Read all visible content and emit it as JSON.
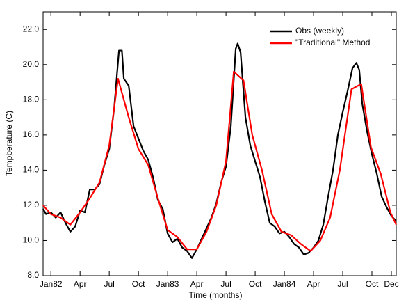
{
  "chart_data": {
    "type": "line",
    "x_label": "Time (months)",
    "y_label": "Tempberature (C)",
    "xlim": [
      -0.8,
      35.5
    ],
    "ylim": [
      8,
      23
    ],
    "xticks": [
      {
        "value": 0,
        "label": "Jan82"
      },
      {
        "value": 3,
        "label": "Apr"
      },
      {
        "value": 6,
        "label": "Jul"
      },
      {
        "value": 9,
        "label": "Oct"
      },
      {
        "value": 12,
        "label": "Jan83"
      },
      {
        "value": 15,
        "label": "Apr"
      },
      {
        "value": 18,
        "label": "Jul"
      },
      {
        "value": 21,
        "label": "Oct"
      },
      {
        "value": 24,
        "label": "Jan84"
      },
      {
        "value": 27,
        "label": "Apr"
      },
      {
        "value": 30,
        "label": "Jul"
      },
      {
        "value": 33,
        "label": "Oct"
      },
      {
        "value": 35,
        "label": "Dec"
      }
    ],
    "yticks": [
      {
        "value": 8,
        "label": "8.0"
      },
      {
        "value": 10,
        "label": "10.0"
      },
      {
        "value": 12,
        "label": "12.0"
      },
      {
        "value": 14,
        "label": "14.0"
      },
      {
        "value": 16,
        "label": "16.0"
      },
      {
        "value": 18,
        "label": "18.0"
      },
      {
        "value": 20,
        "label": "20.0"
      },
      {
        "value": 22,
        "label": "22.0"
      }
    ],
    "legend": "upper right",
    "series": [
      {
        "name": "Obs (weekly)",
        "color": "#000000",
        "x": [
          -0.8,
          -0.5,
          0,
          0.5,
          1,
          1.5,
          2,
          2.5,
          3,
          3.5,
          4,
          4.5,
          5,
          5.5,
          6,
          6.5,
          7,
          7.3,
          7.5,
          8,
          8.5,
          9,
          9.5,
          10,
          10.5,
          11,
          11.5,
          12,
          12.5,
          13,
          13.5,
          14,
          14.5,
          15,
          15.5,
          16,
          16.5,
          17,
          17.5,
          18,
          18.5,
          19,
          19.2,
          19.5,
          20,
          20.5,
          21,
          21.5,
          22,
          22.5,
          23,
          23.5,
          24,
          24.5,
          25,
          25.5,
          26,
          26.5,
          27,
          27.5,
          28,
          28.5,
          29,
          29.5,
          30,
          30.5,
          31,
          31.4,
          31.7,
          32,
          32.5,
          33,
          33.5,
          34,
          34.5,
          35,
          35.5
        ],
        "values": [
          11.8,
          11.5,
          11.6,
          11.3,
          11.6,
          11.0,
          10.5,
          10.8,
          11.7,
          11.6,
          12.9,
          12.9,
          13.2,
          14.3,
          15.2,
          17.5,
          20.8,
          20.8,
          19.2,
          18.8,
          16.5,
          15.8,
          15.1,
          14.6,
          13.6,
          12.3,
          11.8,
          10.4,
          9.9,
          10.1,
          9.6,
          9.4,
          9.0,
          9.5,
          10.1,
          10.7,
          11.3,
          12.1,
          13.3,
          14.2,
          16.5,
          20.9,
          21.2,
          20.7,
          17.0,
          15.4,
          14.5,
          13.6,
          12.2,
          11.0,
          10.8,
          10.4,
          10.5,
          10.2,
          9.8,
          9.6,
          9.2,
          9.3,
          9.6,
          10.0,
          10.9,
          12.5,
          14.0,
          16.0,
          17.3,
          18.5,
          19.8,
          20.1,
          19.7,
          17.8,
          16.2,
          14.9,
          13.8,
          12.5,
          11.9,
          11.4,
          11.1
        ]
      },
      {
        "name": "\"Traditional\" Method",
        "color": "#ff0000",
        "x": [
          -0.8,
          0,
          1,
          2,
          3,
          4,
          5,
          6,
          6.9,
          8,
          9,
          10,
          11,
          12,
          13,
          14,
          15,
          16,
          17,
          18,
          18.8,
          19.8,
          20.7,
          21.7,
          22.7,
          23.7,
          24.7,
          25.7,
          26.7,
          27.7,
          28.7,
          29.7,
          30.9,
          31.9,
          32.9,
          33.9,
          34.9,
          35.5
        ],
        "values": [
          12.0,
          11.5,
          11.3,
          10.9,
          11.6,
          12.4,
          13.3,
          15.4,
          19.2,
          17.0,
          15.2,
          14.3,
          12.4,
          10.6,
          10.2,
          9.5,
          9.5,
          10.5,
          12.0,
          14.5,
          19.6,
          19.1,
          16.0,
          14.0,
          11.5,
          10.5,
          10.3,
          9.8,
          9.4,
          10.0,
          11.3,
          14.0,
          18.6,
          18.9,
          15.3,
          13.8,
          11.6,
          10.9
        ]
      }
    ]
  }
}
